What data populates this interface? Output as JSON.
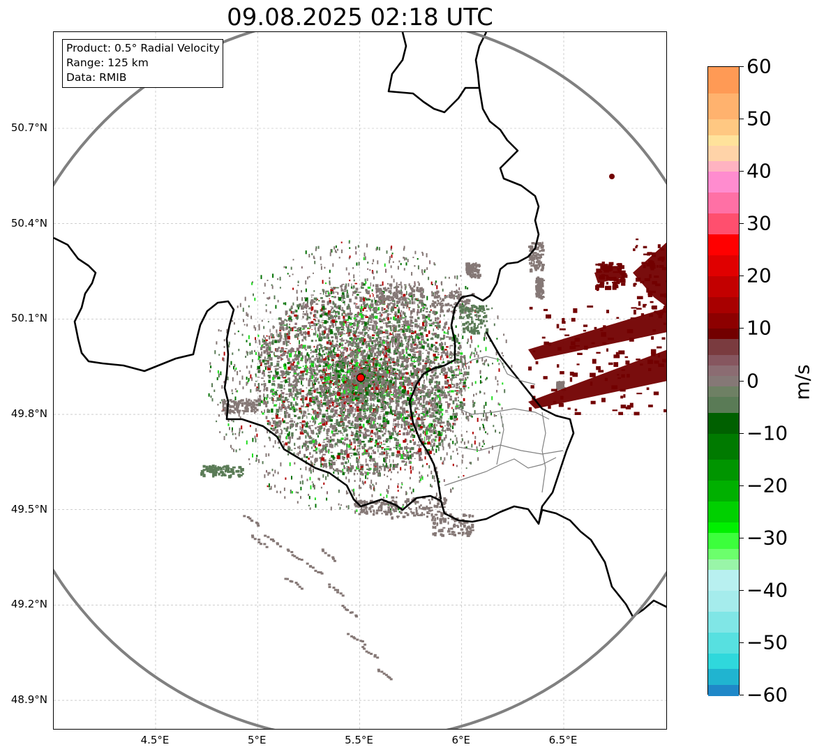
{
  "title": "09.08.2025 02:18 UTC",
  "info_box": {
    "product": "Product: 0.5° Radial Velocity",
    "range": "Range: 125 km",
    "source": "Data: RMIB"
  },
  "axes": {
    "y_ticks": [
      "50.7°N",
      "50.4°N",
      "50.1°N",
      "49.8°N",
      "49.5°N",
      "49.2°N",
      "48.9°N"
    ],
    "x_ticks": [
      "4.5°E",
      "5°E",
      "5.5°E",
      "6°E",
      "6.5°E"
    ]
  },
  "colorbar": {
    "unit": "m/s",
    "ticks": [
      "60",
      "50",
      "40",
      "30",
      "20",
      "10",
      "0",
      "−10",
      "−20",
      "−30",
      "−40",
      "−50",
      "−60"
    ],
    "min": -60,
    "max": 60,
    "bands": [
      {
        "v": 60,
        "color": "#ff9a55"
      },
      {
        "v": 55,
        "color": "#ffb26e"
      },
      {
        "v": 50,
        "color": "#ffc882"
      },
      {
        "v": 47,
        "color": "#ffe29b"
      },
      {
        "v": 45,
        "color": "#ffd3a8"
      },
      {
        "v": 42,
        "color": "#ffb3c1"
      },
      {
        "v": 40,
        "color": "#ff8ccf"
      },
      {
        "v": 36,
        "color": "#ff70a5"
      },
      {
        "v": 32,
        "color": "#ff4f6e"
      },
      {
        "v": 28,
        "color": "#ff0000"
      },
      {
        "v": 24,
        "color": "#e00000"
      },
      {
        "v": 20,
        "color": "#c30000"
      },
      {
        "v": 16,
        "color": "#a80000"
      },
      {
        "v": 13,
        "color": "#8d0000"
      },
      {
        "v": 10,
        "color": "#720000"
      },
      {
        "v": 8,
        "color": "#7a3b3f"
      },
      {
        "v": 5,
        "color": "#86565f"
      },
      {
        "v": 3,
        "color": "#8b6c72"
      },
      {
        "v": 1,
        "color": "#857876"
      },
      {
        "v": -1,
        "color": "#6e8064"
      },
      {
        "v": -3,
        "color": "#5a7b56"
      },
      {
        "v": -6,
        "color": "#006000"
      },
      {
        "v": -10,
        "color": "#007a00"
      },
      {
        "v": -15,
        "color": "#009500"
      },
      {
        "v": -19,
        "color": "#00b000"
      },
      {
        "v": -23,
        "color": "#00d000"
      },
      {
        "v": -27,
        "color": "#00f000"
      },
      {
        "v": -29,
        "color": "#3cff3c"
      },
      {
        "v": -32,
        "color": "#6cff6c"
      },
      {
        "v": -34,
        "color": "#99f5a8"
      },
      {
        "v": -36,
        "color": "#b8f0f0"
      },
      {
        "v": -40,
        "color": "#a5ecec"
      },
      {
        "v": -44,
        "color": "#80e6e6"
      },
      {
        "v": -48,
        "color": "#57e0e0"
      },
      {
        "v": -52,
        "color": "#2fd8dc"
      },
      {
        "v": -55,
        "color": "#20b4d0"
      },
      {
        "v": -58,
        "color": "#1f88c8"
      }
    ]
  },
  "map": {
    "radar_site": {
      "lon": 5.505,
      "lat": 49.915
    },
    "range_km": 125,
    "lon_range": [
      4.0,
      7.0
    ],
    "lat_range": [
      48.8,
      50.98
    ],
    "colors": {
      "ring": "#808080",
      "border": "#000000",
      "province": "#808080",
      "clutter": "#857876",
      "green_clutter": "#5a7b56",
      "inbound": "#007a00",
      "outbound": "#720000",
      "site": "#ff0000"
    }
  }
}
